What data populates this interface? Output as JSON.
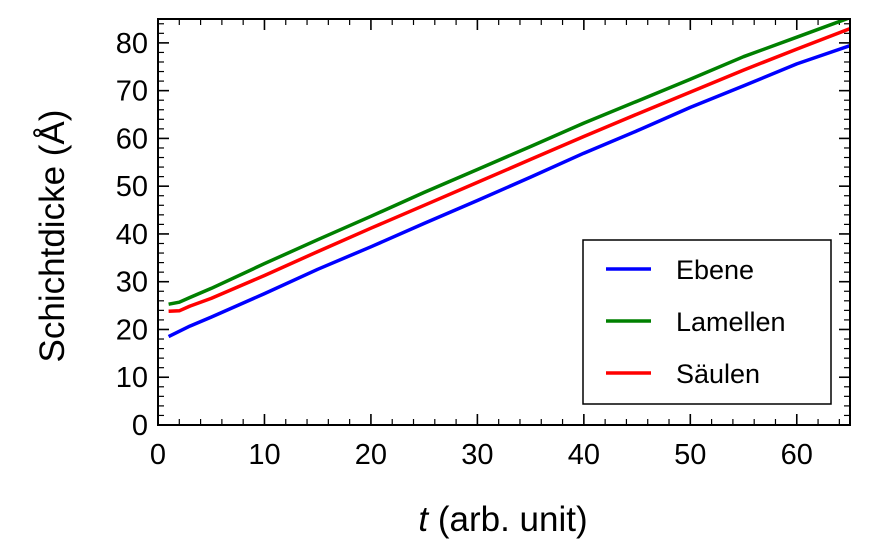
{
  "chart_data": {
    "type": "line",
    "title": "",
    "xlabel_var": "t",
    "xlabel_rest": " (arb. unit)",
    "ylabel": "Schichtdicke (Å)",
    "xlim": [
      0,
      65
    ],
    "ylim": [
      0,
      85
    ],
    "xticks": [
      0,
      10,
      20,
      30,
      40,
      50,
      60
    ],
    "yticks": [
      0,
      10,
      20,
      30,
      40,
      50,
      60,
      70,
      80
    ],
    "grid": false,
    "legend_position": "lower-right",
    "series": [
      {
        "name": "Ebene",
        "color": "#0000ff",
        "x": [
          1,
          3,
          5,
          10,
          15,
          20,
          25,
          30,
          35,
          40,
          45,
          50,
          55,
          60,
          65
        ],
        "y": [
          18.5,
          20.7,
          22.6,
          27.5,
          32.6,
          37.3,
          42.2,
          47.0,
          51.9,
          56.9,
          61.6,
          66.5,
          71.0,
          75.6,
          79.4
        ]
      },
      {
        "name": "Lamellen",
        "color": "#008000",
        "x": [
          1,
          2,
          3,
          5,
          10,
          15,
          20,
          25,
          30,
          35,
          40,
          45,
          50,
          55,
          60,
          65
        ],
        "y": [
          25.3,
          25.7,
          26.7,
          28.6,
          33.8,
          38.8,
          43.7,
          48.7,
          53.5,
          58.3,
          63.2,
          67.8,
          72.4,
          77.1,
          81.2,
          85.3
        ]
      },
      {
        "name": "Säulen",
        "color": "#ff0000",
        "x": [
          1,
          2,
          3,
          5,
          10,
          15,
          20,
          25,
          30,
          35,
          40,
          45,
          50,
          55,
          60,
          65
        ],
        "y": [
          23.8,
          23.9,
          24.9,
          26.5,
          31.3,
          36.3,
          41.2,
          46.0,
          50.8,
          55.6,
          60.4,
          65.1,
          69.7,
          74.3,
          78.7,
          83.0
        ]
      }
    ]
  }
}
